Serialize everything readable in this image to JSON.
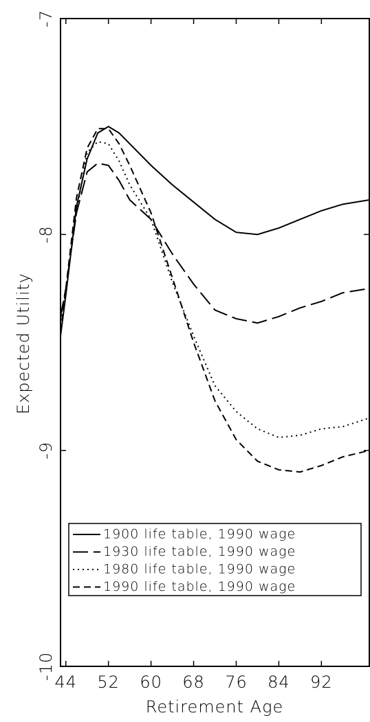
{
  "chart_data": {
    "type": "line",
    "xlabel": "Retirement Age",
    "ylabel": "Expected Utility",
    "x": [
      43,
      44,
      46,
      48,
      50,
      52,
      54,
      56,
      60,
      64,
      68,
      72,
      76,
      80,
      84,
      88,
      92,
      96,
      101
    ],
    "series": [
      {
        "name": "1900 life table, 1990 wage",
        "color": "#000000",
        "dash": "solid",
        "values": [
          -8.47,
          -8.28,
          -7.87,
          -7.65,
          -7.53,
          -7.5,
          -7.53,
          -7.58,
          -7.68,
          -7.77,
          -7.85,
          -7.93,
          -7.99,
          -8.0,
          -7.97,
          -7.93,
          -7.89,
          -7.86,
          -7.84
        ]
      },
      {
        "name": "1930 life table, 1990 wage",
        "color": "#000000",
        "dash": "long-dash",
        "values": [
          -8.38,
          -8.25,
          -7.9,
          -7.71,
          -7.67,
          -7.68,
          -7.75,
          -7.84,
          -7.93,
          -8.09,
          -8.23,
          -8.35,
          -8.39,
          -8.41,
          -8.38,
          -8.34,
          -8.31,
          -8.27,
          -8.25
        ]
      },
      {
        "name": "1980 life table, 1990 wage",
        "color": "#000000",
        "dash": "dotted",
        "values": [
          -8.4,
          -8.25,
          -7.9,
          -7.62,
          -7.57,
          -7.58,
          -7.66,
          -7.77,
          -7.93,
          -8.22,
          -8.47,
          -8.7,
          -8.82,
          -8.9,
          -8.94,
          -8.93,
          -8.9,
          -8.89,
          -8.85
        ]
      },
      {
        "name": "1990 life table, 1990 wage",
        "color": "#000000",
        "dash": "dashed",
        "values": [
          -8.45,
          -8.25,
          -7.83,
          -7.6,
          -7.51,
          -7.51,
          -7.58,
          -7.68,
          -7.9,
          -8.2,
          -8.5,
          -8.77,
          -8.95,
          -9.05,
          -9.09,
          -9.1,
          -9.07,
          -9.03,
          -9.0
        ]
      }
    ],
    "xlim": [
      43,
      101
    ],
    "xticks": [
      44,
      52,
      60,
      68,
      76,
      84,
      92
    ],
    "ylim": [
      -10,
      -7
    ],
    "yticks": [
      -10,
      -9,
      -8,
      -7
    ],
    "grid": false,
    "legend": "lower left"
  }
}
